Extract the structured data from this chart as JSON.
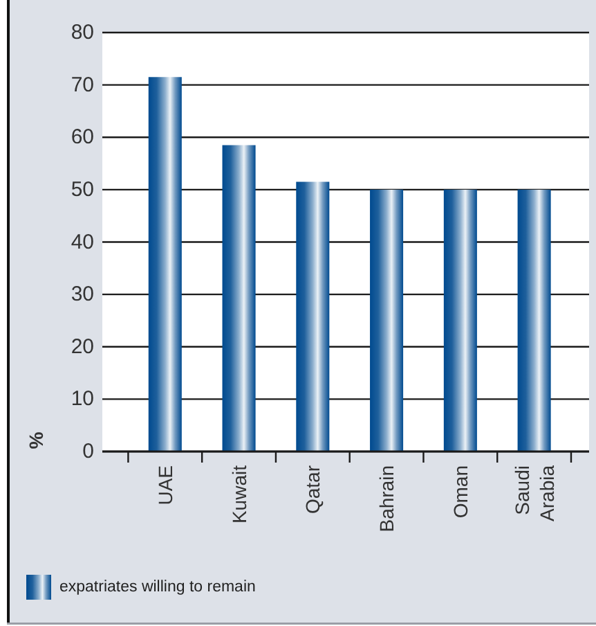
{
  "chart_data": {
    "type": "bar",
    "ylabel": "%",
    "categories": [
      "UAE",
      "Kuwait",
      "Qatar",
      "Bahrain",
      "Oman",
      "Saudi Arabia"
    ],
    "series": [
      {
        "name": "expatriates willing to remain",
        "color": "#004a8f",
        "values": [
          71.5,
          58.5,
          51.5,
          50,
          50,
          50
        ]
      }
    ],
    "ylim": [
      0,
      80
    ],
    "yticks": [
      0,
      10,
      20,
      30,
      40,
      50,
      60,
      70,
      80
    ],
    "grid": "y",
    "legend": "bottom left"
  }
}
